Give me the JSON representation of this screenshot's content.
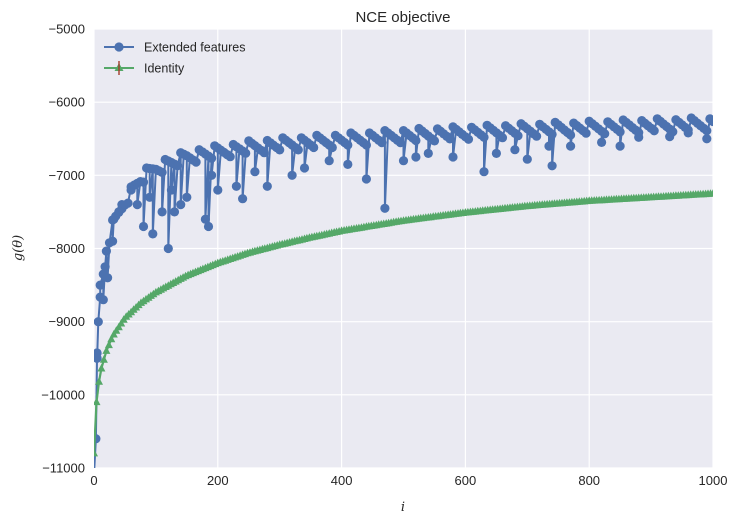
{
  "chart_data": {
    "type": "line",
    "title": "NCE objective",
    "xlabel": "i",
    "ylabel": "g(θ)",
    "xlim": [
      0,
      1000
    ],
    "ylim": [
      -11000,
      -5000
    ],
    "xticks": [
      0,
      200,
      400,
      600,
      800,
      1000
    ],
    "yticks": [
      -11000,
      -10000,
      -9000,
      -8000,
      -7000,
      -6000,
      -5000
    ],
    "x_tick_labels": [
      "0",
      "200",
      "400",
      "600",
      "800",
      "1000"
    ],
    "y_tick_labels": [
      "−11000",
      "−10000",
      "−9000",
      "−8000",
      "−7000",
      "−6000",
      "−5000"
    ],
    "grid": true,
    "legend_position": "top-left",
    "series": [
      {
        "name": "Extended features",
        "color": "#4c72b0",
        "marker": "circle",
        "x": [
          0,
          5,
          10,
          20,
          30,
          50,
          75,
          100,
          150,
          200,
          250,
          300,
          400,
          500,
          600,
          700,
          800,
          900,
          1000
        ],
        "y": [
          -11000,
          -9500,
          -8700,
          -8000,
          -7700,
          -7350,
          -7050,
          -6900,
          -6750,
          -6680,
          -6620,
          -6580,
          -6520,
          -6460,
          -6420,
          -6380,
          -6350,
          -6320,
          -6300
        ],
        "dips": [
          [
            3,
            -10600
          ],
          [
            5,
            -9500
          ],
          [
            7,
            -9000
          ],
          [
            10,
            -8500
          ],
          [
            15,
            -8700
          ],
          [
            18,
            -8250
          ],
          [
            22,
            -8400
          ],
          [
            30,
            -7900
          ],
          [
            32,
            -7600
          ],
          [
            40,
            -7500
          ],
          [
            45,
            -7400
          ],
          [
            60,
            -7200
          ],
          [
            70,
            -7400
          ],
          [
            80,
            -7700
          ],
          [
            90,
            -7300
          ],
          [
            95,
            -7800
          ],
          [
            110,
            -7500
          ],
          [
            120,
            -8000
          ],
          [
            125,
            -7200
          ],
          [
            130,
            -7500
          ],
          [
            140,
            -7400
          ],
          [
            150,
            -7300
          ],
          [
            180,
            -7600
          ],
          [
            185,
            -7700
          ],
          [
            190,
            -7000
          ],
          [
            200,
            -7200
          ],
          [
            230,
            -7150
          ],
          [
            240,
            -7320
          ],
          [
            260,
            -6950
          ],
          [
            280,
            -7150
          ],
          [
            320,
            -7000
          ],
          [
            340,
            -6900
          ],
          [
            380,
            -6800
          ],
          [
            410,
            -6850
          ],
          [
            440,
            -7050
          ],
          [
            470,
            -7450
          ],
          [
            500,
            -6800
          ],
          [
            520,
            -6750
          ],
          [
            540,
            -6700
          ],
          [
            580,
            -6750
          ],
          [
            630,
            -6950
          ],
          [
            650,
            -6700
          ],
          [
            680,
            -6650
          ],
          [
            700,
            -6780
          ],
          [
            735,
            -6600
          ],
          [
            740,
            -6870
          ],
          [
            770,
            -6600
          ],
          [
            820,
            -6550
          ],
          [
            850,
            -6600
          ],
          [
            880,
            -6480
          ],
          [
            930,
            -6470
          ],
          [
            960,
            -6420
          ],
          [
            990,
            -6500
          ]
        ]
      },
      {
        "name": "Identity",
        "color": "#55a868",
        "marker": "triangle",
        "x": [
          0,
          2,
          5,
          10,
          20,
          30,
          50,
          75,
          100,
          150,
          200,
          250,
          300,
          350,
          400,
          500,
          600,
          700,
          800,
          900,
          1000
        ],
        "y": [
          -10800,
          -10300,
          -10000,
          -9700,
          -9400,
          -9200,
          -8950,
          -8750,
          -8600,
          -8370,
          -8200,
          -8060,
          -7950,
          -7850,
          -7760,
          -7620,
          -7510,
          -7420,
          -7350,
          -7300,
          -7250
        ]
      }
    ]
  }
}
